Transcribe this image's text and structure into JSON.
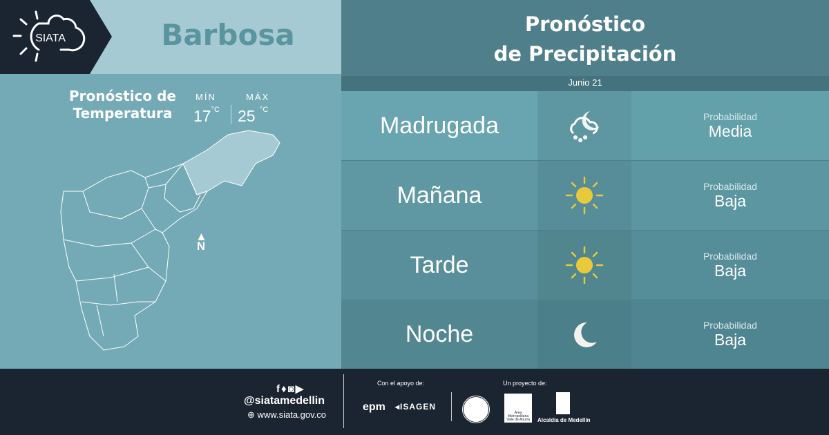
{
  "brand": {
    "logo_text": "SIATA"
  },
  "location": {
    "city": "Barbosa"
  },
  "temperature": {
    "title_line1": "Pronóstico de",
    "title_line2": "Temperatura",
    "min_label": "MÍN",
    "min_value": "17",
    "max_label": "MÁX",
    "max_value": "25",
    "unit": "°C"
  },
  "map": {
    "north_label": "N"
  },
  "forecast": {
    "title_line1": "Pronóstico",
    "title_line2": "de Precipitación",
    "date": "Junio 21",
    "rows": [
      {
        "period": "Madrugada",
        "icon": "night-rain-icon",
        "prob_label": "Probabilidad",
        "prob_value": "Media"
      },
      {
        "period": "Mañana",
        "icon": "sun-icon",
        "prob_label": "Probabilidad",
        "prob_value": "Baja"
      },
      {
        "period": "Tarde",
        "icon": "sun-icon",
        "prob_label": "Probabilidad",
        "prob_value": "Baja"
      },
      {
        "period": "Noche",
        "icon": "moon-icon",
        "prob_label": "Probabilidad",
        "prob_value": "Baja"
      }
    ]
  },
  "footer": {
    "handle": "@siatamedellin",
    "website": "www.siata.gov.co",
    "support_label": "Con el apoyo de:",
    "support_logos": [
      "epm",
      "ISAGEN"
    ],
    "project_label": "Un proyecto de:",
    "project_logos": [
      "Área Metropolitana Valle de Aburrá",
      "Alcaldía de Medellín"
    ]
  },
  "colors": {
    "dark": "#1b2431",
    "sun": "#e8c93a",
    "city": "#5a959f"
  }
}
